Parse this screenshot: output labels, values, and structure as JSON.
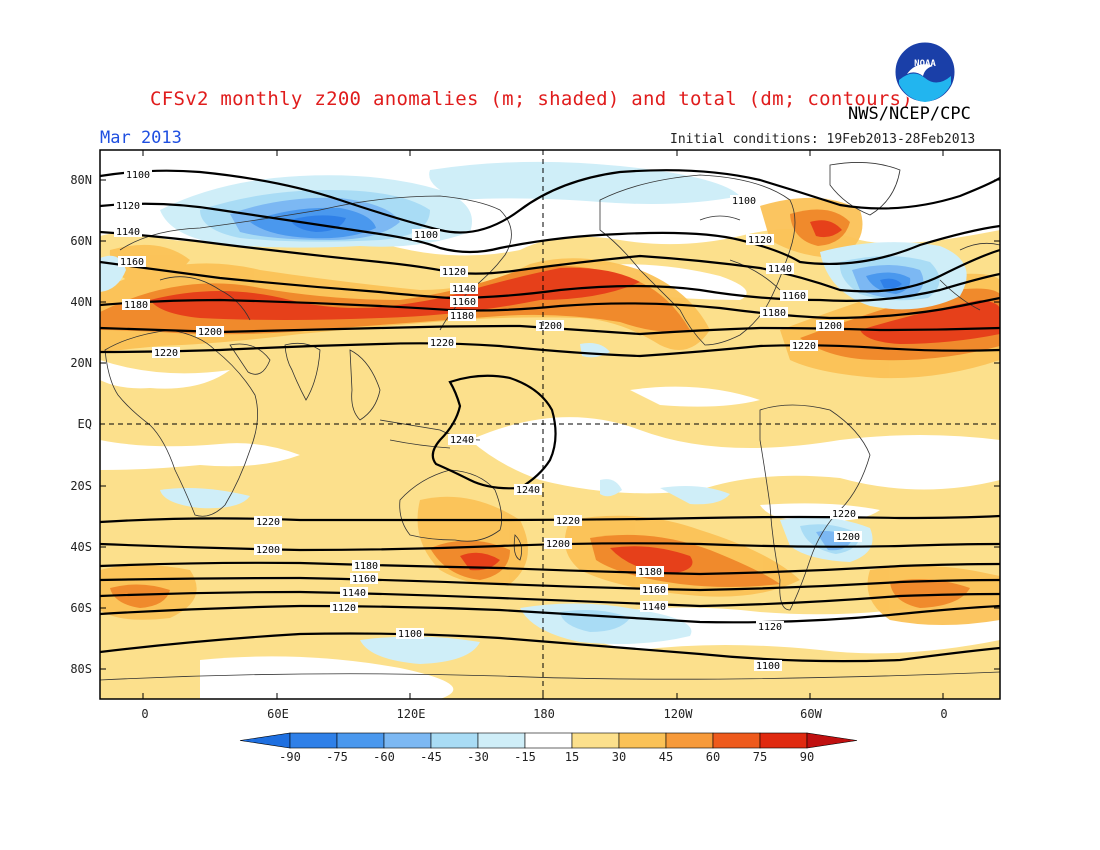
{
  "title": "CFSv2 monthly z200 anomalies (m; shaded) and total (dm; contours)",
  "agency": "NWS/NCEP/CPC",
  "logo_text": "NOAA",
  "month_label": "Mar 2013",
  "initial_conditions": "Initial conditions: 19Feb2013-28Feb2013",
  "lat_labels": [
    "80N",
    "60N",
    "40N",
    "20N",
    "EQ",
    "20S",
    "40S",
    "60S",
    "80S"
  ],
  "lon_labels": [
    "0",
    "60E",
    "120E",
    "180",
    "120W",
    "60W",
    "0"
  ],
  "colorbar": {
    "labels": [
      "-90",
      "-75",
      "-60",
      "-45",
      "-30",
      "-15",
      "15",
      "30",
      "45",
      "60",
      "75",
      "90"
    ],
    "colors": [
      "#1e6fe0",
      "#2f80e8",
      "#4a98ee",
      "#7cb8f3",
      "#a9dcf5",
      "#cfeef8",
      "#ffffff",
      "#fce08c",
      "#fbc257",
      "#f79a3a",
      "#ee5a1c",
      "#e02a10",
      "#c01010"
    ]
  },
  "contour_labels": [
    "1100",
    "1120",
    "1140",
    "1160",
    "1180",
    "1200",
    "1220",
    "1240"
  ],
  "colors": {
    "title": "#e01c1c",
    "month": "#1f4fe0",
    "contour": "#000000",
    "coast": "#333333"
  }
}
